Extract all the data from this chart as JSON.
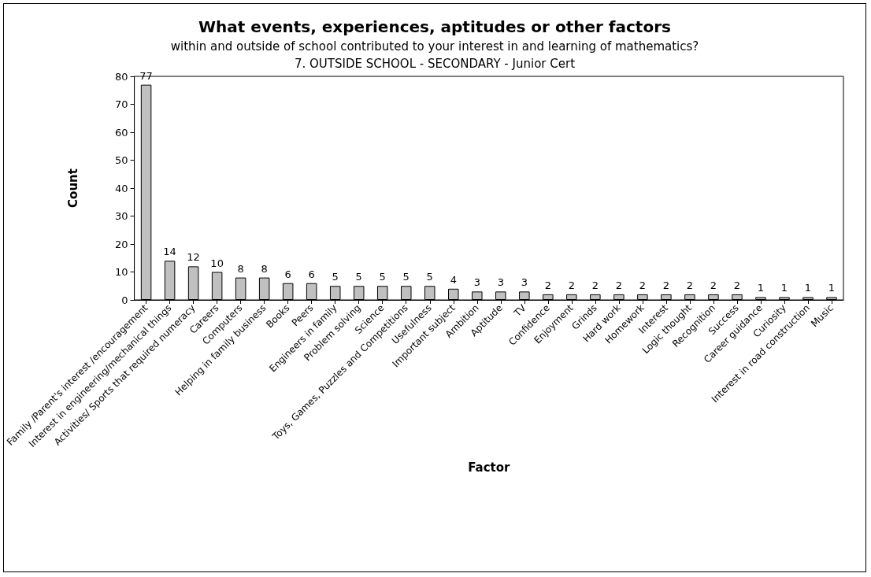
{
  "chart_data": {
    "type": "bar",
    "title": "What events, experiences, aptitudes or other factors",
    "subtitle": "within and outside of school contributed to your interest in and learning of mathematics?\n7. OUTSIDE SCHOOL - SECONDARY - Junior Cert",
    "xlabel": "Factor",
    "ylabel": "Count",
    "categories": [
      "Family /Parent's interest /encouragement",
      "Interest in engineering/mechanical things",
      "Activities/ Sports that required numeracy",
      "Careers",
      "Computers",
      "Helping in family business",
      "Books",
      "Peers",
      "Engineers in family",
      "Problem solving",
      "Science",
      "Toys, Games, Puzzles and Competitions",
      "Usefulness",
      "Important subject",
      "Ambition",
      "Aptitude",
      "TV",
      "Confidence",
      "Enjoyment",
      "Grinds",
      "Hard work",
      "Homework",
      "Interest",
      "Logic thought",
      "Recognition",
      "Success",
      "Career guidance",
      "Curiosity",
      "Interest in road construction",
      "Music"
    ],
    "values": [
      77,
      14,
      12,
      10,
      8,
      8,
      6,
      6,
      5,
      5,
      5,
      5,
      5,
      4,
      3,
      3,
      3,
      2,
      2,
      2,
      2,
      2,
      2,
      2,
      2,
      2,
      1,
      1,
      1,
      1
    ],
    "color": "#c0c0c0",
    "ylim": [
      0,
      80
    ],
    "yticks": [
      0,
      10,
      20,
      30,
      40,
      50,
      60,
      70,
      80
    ],
    "data_labels": true,
    "grid": false
  }
}
